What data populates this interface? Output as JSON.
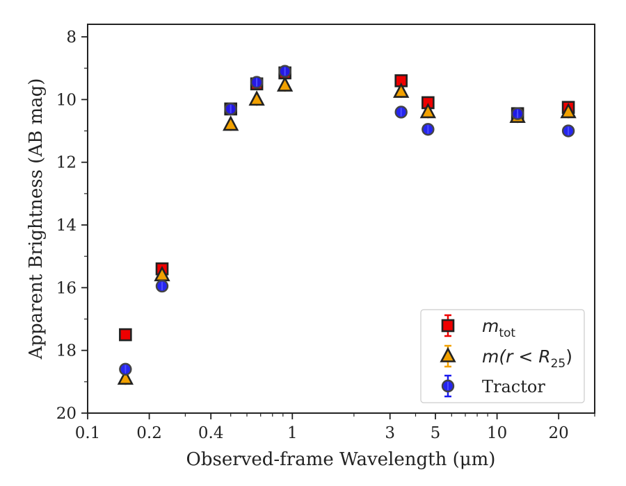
{
  "chart_data": {
    "type": "scatter",
    "xlabel": "Observed-frame Wavelength (μm)",
    "ylabel": "Apparent Brightness (AB mag)",
    "x_scale": "log",
    "xlim": [
      0.1,
      30
    ],
    "ylim": [
      20,
      7.6
    ],
    "y_inverted": true,
    "grid": false,
    "legend_position": "lower right",
    "x_ticks": [
      0.1,
      0.2,
      0.4,
      1,
      3,
      5,
      10,
      20
    ],
    "x_tick_labels": [
      "0.1",
      "0.2",
      "0.4",
      "1",
      "3",
      "5",
      "10",
      "20"
    ],
    "y_ticks": [
      8,
      10,
      12,
      14,
      16,
      18,
      20
    ],
    "y_tick_labels": [
      "8",
      "10",
      "12",
      "14",
      "16",
      "18",
      "20"
    ],
    "series": [
      {
        "name": "m_tot",
        "legend_main": "m",
        "legend_sub": "tot",
        "legend_tail": "",
        "marker": "square",
        "color": "#ee0000",
        "points": [
          {
            "x": 0.153,
            "y": 17.5
          },
          {
            "x": 0.231,
            "y": 15.4
          },
          {
            "x": 0.5,
            "y": 10.3
          },
          {
            "x": 0.67,
            "y": 9.5
          },
          {
            "x": 0.92,
            "y": 9.15
          },
          {
            "x": 3.4,
            "y": 9.4
          },
          {
            "x": 4.6,
            "y": 10.1
          },
          {
            "x": 12.6,
            "y": 10.45
          },
          {
            "x": 22.3,
            "y": 10.25
          }
        ]
      },
      {
        "name": "m(r < R25)",
        "legend_main": "m(r < R",
        "legend_sub": "25",
        "legend_tail": ")",
        "marker": "triangle",
        "color": "#f2a100",
        "points": [
          {
            "x": 0.153,
            "y": 18.9
          },
          {
            "x": 0.231,
            "y": 15.6
          },
          {
            "x": 0.5,
            "y": 10.8
          },
          {
            "x": 0.67,
            "y": 10.0
          },
          {
            "x": 0.92,
            "y": 9.55
          },
          {
            "x": 3.4,
            "y": 9.75
          },
          {
            "x": 4.6,
            "y": 10.4
          },
          {
            "x": 12.6,
            "y": 10.55
          },
          {
            "x": 22.3,
            "y": 10.4
          }
        ]
      },
      {
        "name": "Tractor",
        "legend_main": "Tractor",
        "legend_sub": "",
        "legend_tail": "",
        "marker": "circle",
        "color": "#1a1aee",
        "points": [
          {
            "x": 0.153,
            "y": 18.6
          },
          {
            "x": 0.231,
            "y": 15.95
          },
          {
            "x": 0.5,
            "y": 10.3
          },
          {
            "x": 0.67,
            "y": 9.45
          },
          {
            "x": 0.92,
            "y": 9.1
          },
          {
            "x": 3.4,
            "y": 10.4
          },
          {
            "x": 4.6,
            "y": 10.95
          },
          {
            "x": 12.6,
            "y": 10.45
          },
          {
            "x": 22.3,
            "y": 11.0
          }
        ]
      }
    ]
  }
}
